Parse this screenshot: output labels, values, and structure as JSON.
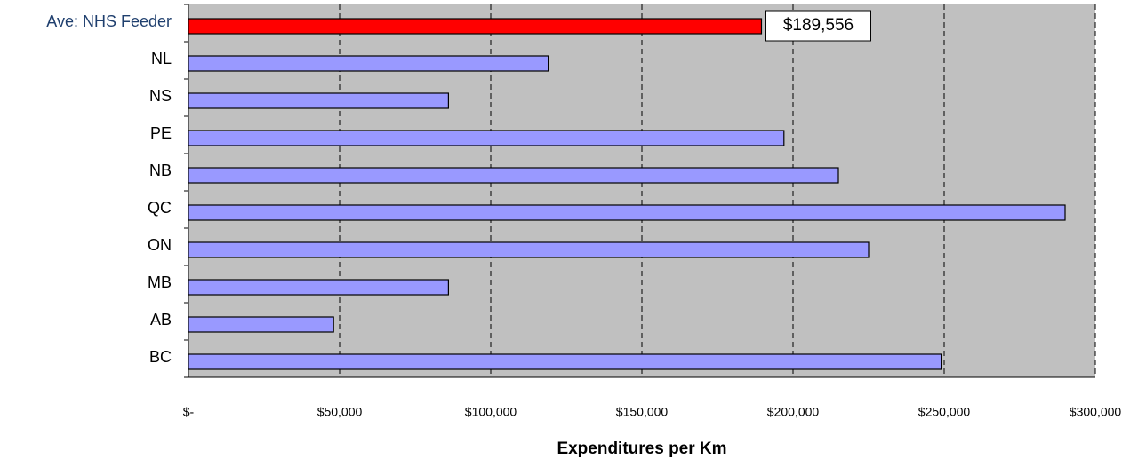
{
  "chart_data": {
    "type": "barh",
    "xlabel": "Expenditures per Km",
    "categories": [
      "Ave: NHS Feeder",
      "NL",
      "NS",
      "PE",
      "NB",
      "QC",
      "ON",
      "MB",
      "AB",
      "BC"
    ],
    "values": [
      189556,
      119000,
      86000,
      197000,
      215000,
      290000,
      225000,
      86000,
      48000,
      249000
    ],
    "value_labels": [
      "$189,556",
      null,
      null,
      null,
      null,
      null,
      null,
      null,
      null,
      null
    ],
    "colors": [
      "#ff0000",
      "#9999ff",
      "#9999ff",
      "#9999ff",
      "#9999ff",
      "#9999ff",
      "#9999ff",
      "#9999ff",
      "#9999ff",
      "#9999ff"
    ],
    "xlim": [
      0,
      300000
    ],
    "xticks": [
      {
        "value": 0,
        "label": "$-"
      },
      {
        "value": 50000,
        "label": "$50,000"
      },
      {
        "value": 100000,
        "label": "$100,000"
      },
      {
        "value": 150000,
        "label": "$150,000"
      },
      {
        "value": 200000,
        "label": "$200,000"
      },
      {
        "value": 250000,
        "label": "$250,000"
      },
      {
        "value": 300000,
        "label": "$300,000"
      }
    ],
    "grid": true
  }
}
